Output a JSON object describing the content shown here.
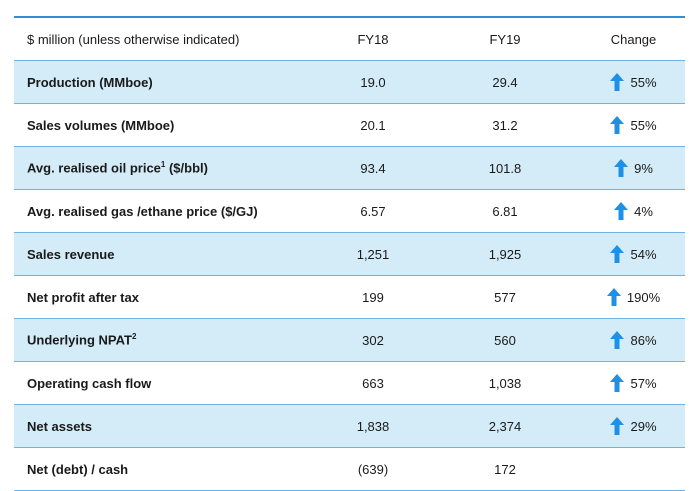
{
  "colors": {
    "accent": "#2f8fd6",
    "row_shade": "#d3ecf8",
    "arrow": "#1e90e6"
  },
  "header": {
    "label": "$ million (unless otherwise indicated)",
    "fy18": "FY18",
    "fy19": "FY19",
    "change": "Change"
  },
  "rows": [
    {
      "label": "Production (MMboe)",
      "sup": "",
      "fy18": "19.0",
      "fy19": "29.4",
      "change": "55%",
      "arrow": "up-arrow-icon"
    },
    {
      "label": "Sales volumes (MMboe)",
      "sup": "",
      "fy18": "20.1",
      "fy19": "31.2",
      "change": "55%",
      "arrow": "up-arrow-icon"
    },
    {
      "label": "Avg. realised oil price",
      "sup": "1",
      "label_suffix": " ($/bbl)",
      "fy18": "93.4",
      "fy19": "101.8",
      "change": "9%",
      "arrow": "up-arrow-icon"
    },
    {
      "label": "Avg. realised gas /ethane price ($/GJ)",
      "sup": "",
      "fy18": "6.57",
      "fy19": "6.81",
      "change": "4%",
      "arrow": "up-arrow-icon"
    },
    {
      "label": "Sales revenue",
      "sup": "",
      "fy18": "1,251",
      "fy19": "1,925",
      "change": "54%",
      "arrow": "up-arrow-icon"
    },
    {
      "label": "Net profit after tax",
      "sup": "",
      "fy18": "199",
      "fy19": "577",
      "change": "190%",
      "arrow": "up-arrow-icon"
    },
    {
      "label": "Underlying NPAT",
      "sup": "2",
      "fy18": "302",
      "fy19": "560",
      "change": "86%",
      "arrow": "up-arrow-icon"
    },
    {
      "label": "Operating cash flow",
      "sup": "",
      "fy18": "663",
      "fy19": "1,038",
      "change": "57%",
      "arrow": "up-arrow-icon"
    },
    {
      "label": "Net assets",
      "sup": "",
      "fy18": "1,838",
      "fy19": "2,374",
      "change": "29%",
      "arrow": "up-arrow-icon"
    },
    {
      "label": "Net (debt) / cash",
      "sup": "",
      "fy18": "(639)",
      "fy19": "172",
      "change": "",
      "arrow": ""
    }
  ]
}
